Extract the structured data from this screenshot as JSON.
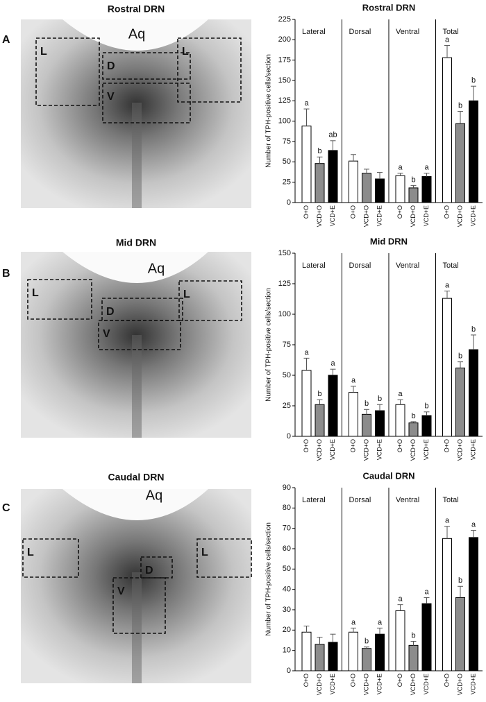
{
  "panels": [
    {
      "label": "A",
      "image": {
        "title": "Rostral DRN",
        "labels": [
          "Aq",
          "L",
          "D",
          "V",
          "L"
        ]
      }
    },
    {
      "label": "B",
      "image": {
        "title": "Mid DRN",
        "labels": [
          "Aq",
          "L",
          "D",
          "V",
          "L"
        ]
      }
    },
    {
      "label": "C",
      "image": {
        "title": "Caudal DRN",
        "labels": [
          "Aq",
          "L",
          "D",
          "V",
          "L"
        ]
      }
    }
  ],
  "chart_data": [
    {
      "type": "bar",
      "title": "Rostral DRN",
      "y_label": "Number of TPH-positive cells/section",
      "categories": [
        "Lateral",
        "Dorsal",
        "Ventral",
        "Total"
      ],
      "series": [
        {
          "name": "O+O",
          "color": "#ffffff",
          "values": [
            94,
            51,
            33,
            178
          ],
          "errors": [
            21,
            8,
            3,
            15
          ],
          "letters": [
            "a",
            null,
            "a",
            "a"
          ]
        },
        {
          "name": "VCD+O",
          "color": "#8c8c8c",
          "values": [
            48,
            36,
            18,
            97
          ],
          "errors": [
            8,
            5,
            3,
            15
          ],
          "letters": [
            "b",
            null,
            "b",
            "b"
          ]
        },
        {
          "name": "VCD+E",
          "color": "#000000",
          "values": [
            64,
            29,
            32,
            125
          ],
          "errors": [
            12,
            8,
            4,
            18
          ],
          "letters": [
            "ab",
            null,
            "a",
            "b"
          ]
        }
      ],
      "ylim": [
        0,
        225
      ],
      "yticks": [
        0,
        25,
        50,
        75,
        100,
        125,
        150,
        175,
        200,
        225
      ]
    },
    {
      "type": "bar",
      "title": "Mid DRN",
      "y_label": "Number of TPH-positive cells/section",
      "categories": [
        "Lateral",
        "Dorsal",
        "Ventral",
        "Total"
      ],
      "series": [
        {
          "name": "O+O",
          "color": "#ffffff",
          "values": [
            54,
            36,
            26,
            113
          ],
          "errors": [
            10,
            5,
            4,
            6
          ],
          "letters": [
            "a",
            "a",
            "a",
            "a"
          ]
        },
        {
          "name": "VCD+O",
          "color": "#8c8c8c",
          "values": [
            26,
            18,
            11,
            56
          ],
          "errors": [
            4,
            4,
            1,
            5
          ],
          "letters": [
            "b",
            "b",
            "b",
            "b"
          ]
        },
        {
          "name": "VCD+E",
          "color": "#000000",
          "values": [
            50,
            21,
            17,
            71
          ],
          "errors": [
            5,
            5,
            3,
            12
          ],
          "letters": [
            "a",
            "b",
            "b",
            "b"
          ]
        }
      ],
      "ylim": [
        0,
        150
      ],
      "yticks": [
        0,
        25,
        50,
        75,
        100,
        125,
        150
      ]
    },
    {
      "type": "bar",
      "title": "Caudal DRN",
      "y_label": "Number of TPH-positive cells/section",
      "categories": [
        "Lateral",
        "Dorsal",
        "Ventral",
        "Total"
      ],
      "series": [
        {
          "name": "O+O",
          "color": "#ffffff",
          "values": [
            19,
            19,
            29.5,
            65
          ],
          "errors": [
            3,
            2,
            3,
            6
          ],
          "letters": [
            null,
            "a",
            "a",
            "a"
          ]
        },
        {
          "name": "VCD+O",
          "color": "#8c8c8c",
          "values": [
            13,
            11,
            12.5,
            36
          ],
          "errors": [
            3.5,
            0.7,
            2,
            5.5
          ],
          "letters": [
            null,
            "b",
            "b",
            "b"
          ]
        },
        {
          "name": "VCD+E",
          "color": "#000000",
          "values": [
            14,
            18,
            33,
            65.5
          ],
          "errors": [
            4,
            3,
            3,
            3.5
          ],
          "letters": [
            null,
            "a",
            "a",
            "a"
          ]
        }
      ],
      "ylim": [
        0,
        90
      ],
      "yticks": [
        0,
        10,
        20,
        30,
        40,
        50,
        60,
        70,
        80,
        90
      ]
    }
  ]
}
